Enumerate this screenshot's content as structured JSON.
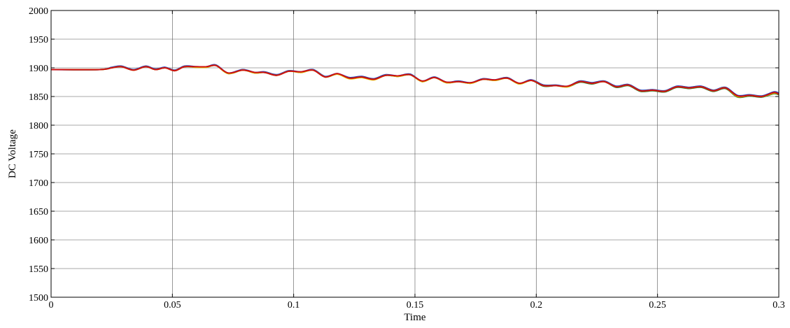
{
  "chart_data": {
    "type": "line",
    "title": "",
    "xlabel": "Time",
    "ylabel": "DC Voltage",
    "xlim": [
      0,
      0.3
    ],
    "ylim": [
      1500,
      2000
    ],
    "x_ticks": [
      0,
      0.05,
      0.1,
      0.15,
      0.2,
      0.25,
      0.3
    ],
    "x_tick_labels": [
      "0",
      "0.05",
      "0.1",
      "0.15",
      "0.2",
      "0.25",
      "0.3"
    ],
    "y_ticks": [
      1500,
      1550,
      1600,
      1650,
      1700,
      1750,
      1800,
      1850,
      1900,
      1950,
      2000
    ],
    "y_tick_labels": [
      "1500",
      "1550",
      "1600",
      "1650",
      "1700",
      "1750",
      "1800",
      "1850",
      "1900",
      "1950",
      "2000"
    ],
    "grid": true,
    "legend": false,
    "series": [
      {
        "color": "#1f3fbf",
        "x": [
          0,
          0.02,
          0.025,
          0.029,
          0.034,
          0.039,
          0.043,
          0.047,
          0.051,
          0.055,
          0.06,
          0.064,
          0.068,
          0.073,
          0.079,
          0.084,
          0.088,
          0.093,
          0.098,
          0.103,
          0.108,
          0.113,
          0.118,
          0.123,
          0.128,
          0.133,
          0.138,
          0.143,
          0.148,
          0.153,
          0.158,
          0.163,
          0.168,
          0.173,
          0.178,
          0.183,
          0.188,
          0.193,
          0.198,
          0.203,
          0.208,
          0.213,
          0.218,
          0.223,
          0.228,
          0.233,
          0.238,
          0.243,
          0.248,
          0.253,
          0.258,
          0.263,
          0.268,
          0.273,
          0.278,
          0.283,
          0.288,
          0.293,
          0.298,
          0.3
        ],
        "y": [
          1897,
          1897,
          1901,
          1903,
          1897,
          1903,
          1898,
          1901,
          1896,
          1903,
          1902,
          1902,
          1905,
          1891,
          1897,
          1892,
          1893,
          1888,
          1895,
          1893,
          1897,
          1885,
          1890,
          1883,
          1885,
          1881,
          1888,
          1886,
          1889,
          1877,
          1884,
          1875,
          1877,
          1874,
          1881,
          1879,
          1883,
          1873,
          1879,
          1870,
          1870,
          1868,
          1877,
          1874,
          1877,
          1868,
          1871,
          1861,
          1862,
          1860,
          1868,
          1866,
          1868,
          1861,
          1866,
          1852,
          1853,
          1851,
          1858,
          1856
        ]
      },
      {
        "color": "#2a7a2a",
        "x": [
          0,
          0.02,
          0.025,
          0.029,
          0.034,
          0.039,
          0.043,
          0.047,
          0.051,
          0.055,
          0.06,
          0.064,
          0.068,
          0.073,
          0.079,
          0.084,
          0.088,
          0.093,
          0.098,
          0.103,
          0.108,
          0.113,
          0.118,
          0.123,
          0.128,
          0.133,
          0.138,
          0.143,
          0.148,
          0.153,
          0.158,
          0.163,
          0.168,
          0.173,
          0.178,
          0.183,
          0.188,
          0.193,
          0.198,
          0.203,
          0.208,
          0.213,
          0.218,
          0.223,
          0.228,
          0.233,
          0.238,
          0.243,
          0.248,
          0.253,
          0.258,
          0.263,
          0.268,
          0.273,
          0.278,
          0.283,
          0.288,
          0.293,
          0.298,
          0.3
        ],
        "y": [
          1897,
          1897,
          1900,
          1902,
          1896,
          1902,
          1897,
          1900,
          1895,
          1902,
          1901,
          1901,
          1904,
          1890,
          1896,
          1891,
          1892,
          1887,
          1894,
          1892,
          1896,
          1884,
          1889,
          1882,
          1884,
          1880,
          1887,
          1885,
          1888,
          1876,
          1883,
          1874,
          1876,
          1873,
          1880,
          1878,
          1882,
          1872,
          1878,
          1868,
          1869,
          1867,
          1875,
          1872,
          1876,
          1866,
          1869,
          1859,
          1860,
          1858,
          1866,
          1864,
          1866,
          1859,
          1864,
          1849,
          1851,
          1849,
          1855,
          1853
        ]
      },
      {
        "color": "#e8c800",
        "x": [
          0,
          0.02,
          0.025,
          0.029,
          0.034,
          0.039,
          0.043,
          0.047,
          0.051,
          0.055,
          0.06,
          0.064,
          0.068,
          0.073,
          0.079,
          0.084,
          0.088,
          0.093,
          0.098,
          0.103,
          0.108,
          0.113,
          0.118,
          0.123,
          0.128,
          0.133,
          0.138,
          0.143,
          0.148,
          0.153,
          0.158,
          0.163,
          0.168,
          0.173,
          0.178,
          0.183,
          0.188,
          0.193,
          0.198,
          0.203,
          0.208,
          0.213,
          0.218,
          0.223,
          0.228,
          0.233,
          0.238,
          0.243,
          0.248,
          0.253,
          0.258,
          0.263,
          0.268,
          0.273,
          0.278,
          0.283,
          0.288,
          0.293,
          0.298,
          0.3
        ],
        "y": [
          1897,
          1897,
          1900,
          1902,
          1896,
          1902,
          1897,
          1900,
          1895,
          1902,
          1901,
          1901,
          1904,
          1890,
          1896,
          1891,
          1892,
          1887,
          1894,
          1892,
          1896,
          1884,
          1889,
          1881,
          1883,
          1879,
          1887,
          1885,
          1888,
          1876,
          1883,
          1874,
          1876,
          1873,
          1880,
          1878,
          1882,
          1872,
          1878,
          1869,
          1869,
          1867,
          1876,
          1873,
          1876,
          1867,
          1870,
          1860,
          1861,
          1859,
          1867,
          1865,
          1867,
          1860,
          1865,
          1850,
          1852,
          1850,
          1856,
          1854
        ]
      },
      {
        "color": "#d01010",
        "x": [
          0,
          0.02,
          0.025,
          0.029,
          0.034,
          0.039,
          0.043,
          0.047,
          0.051,
          0.055,
          0.06,
          0.064,
          0.068,
          0.073,
          0.079,
          0.084,
          0.088,
          0.093,
          0.098,
          0.103,
          0.108,
          0.113,
          0.118,
          0.123,
          0.128,
          0.133,
          0.138,
          0.143,
          0.148,
          0.153,
          0.158,
          0.163,
          0.168,
          0.173,
          0.178,
          0.183,
          0.188,
          0.193,
          0.198,
          0.203,
          0.208,
          0.213,
          0.218,
          0.223,
          0.228,
          0.233,
          0.238,
          0.243,
          0.248,
          0.253,
          0.258,
          0.263,
          0.268,
          0.273,
          0.278,
          0.283,
          0.288,
          0.293,
          0.298,
          0.3
        ],
        "y": [
          1897,
          1897,
          1900,
          1902,
          1896,
          1902,
          1897,
          1900,
          1895,
          1902,
          1902,
          1902,
          1904,
          1891,
          1896,
          1892,
          1892,
          1887,
          1894,
          1893,
          1896,
          1884,
          1890,
          1882,
          1884,
          1880,
          1887,
          1886,
          1888,
          1877,
          1883,
          1875,
          1876,
          1874,
          1880,
          1879,
          1882,
          1873,
          1878,
          1869,
          1869,
          1868,
          1876,
          1873,
          1876,
          1867,
          1870,
          1860,
          1861,
          1859,
          1867,
          1865,
          1867,
          1860,
          1865,
          1851,
          1852,
          1850,
          1857,
          1854
        ]
      }
    ]
  }
}
